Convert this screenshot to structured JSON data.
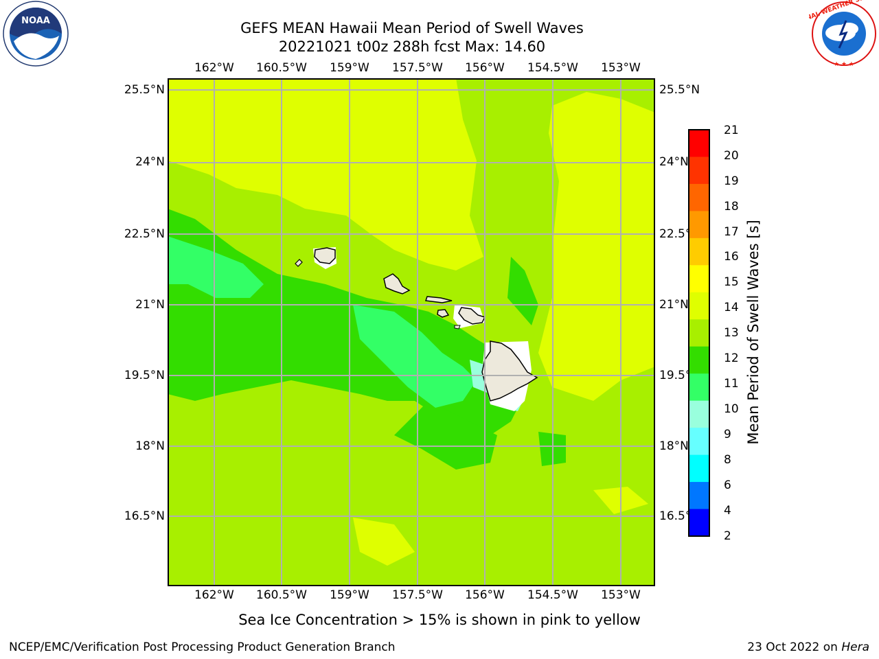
{
  "header": {
    "title_line1": "GEFS MEAN Hawaii Mean Period of Swell Waves",
    "title_line2": "20221021 t00z 288h fcst   Max: 14.60"
  },
  "logos": {
    "left": {
      "name": "noaa-logo",
      "text": "NOAA"
    },
    "right": {
      "name": "nws-logo",
      "text": "NATIONAL WEATHER SERVICE"
    }
  },
  "map": {
    "longitude_labels": [
      "162°W",
      "160.5°W",
      "159°W",
      "157.5°W",
      "156°W",
      "154.5°W",
      "153°W"
    ],
    "latitude_labels_left": [
      "25.5°N",
      "24°N",
      "22.5°N",
      "21°N",
      "19.5°N",
      "18°N",
      "16.5°N"
    ],
    "latitude_labels_right": [
      "25.5°N",
      "24°N",
      "22.5°",
      "21°N",
      "19.5°",
      "18°N",
      "16.5°"
    ],
    "background_color": "#a8ef00",
    "grid_color": "#b0b0b0"
  },
  "colorbar": {
    "label": "Mean Period of Swell Waves [s]",
    "ticks": [
      "21",
      "20",
      "19",
      "18",
      "17",
      "16",
      "15",
      "14",
      "13",
      "12",
      "11",
      "10",
      "9",
      "8",
      "6",
      "4",
      "2"
    ],
    "colors_top_to_bottom": [
      "#ff0000",
      "#ff3300",
      "#ff6600",
      "#ff9900",
      "#ffcc00",
      "#ffff00",
      "#dfff00",
      "#a8ef00",
      "#33dd00",
      "#33ff66",
      "#99ffdd",
      "#66ffff",
      "#00ffff",
      "#0077ff",
      "#0000ff"
    ]
  },
  "note": "Sea Ice Concentration > 15% is shown in pink to yellow",
  "footer": {
    "left": "NCEP/EMC/Verification Post Processing Product Generation Branch",
    "date": "23 Oct 2022 on ",
    "host": "Hera"
  }
}
